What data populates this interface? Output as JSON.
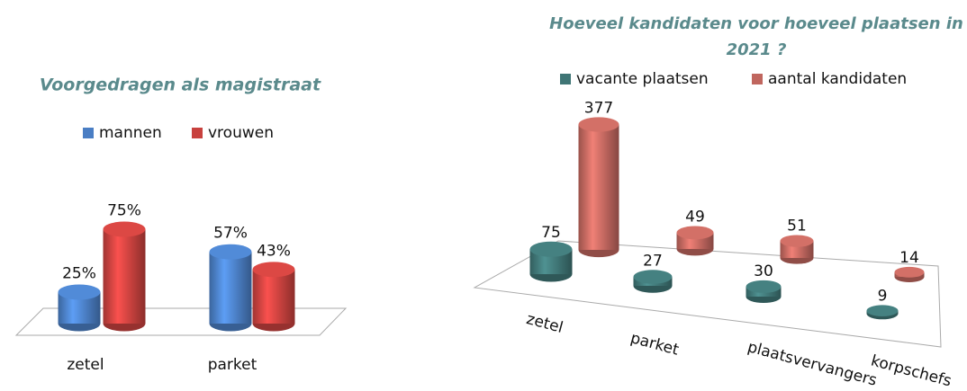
{
  "chart_data": [
    {
      "type": "bar3d",
      "title": "Voorgedragen als magistraat",
      "categories": [
        "zetel",
        "parket"
      ],
      "series": [
        {
          "name": "mannen",
          "color": "#4a7ec4",
          "values": [
            25,
            57
          ],
          "value_labels": [
            "25%",
            "57%"
          ]
        },
        {
          "name": "vrouwen",
          "color": "#c8413e",
          "values": [
            75,
            43
          ],
          "value_labels": [
            "75%",
            "43%"
          ]
        }
      ]
    },
    {
      "type": "bar3d-perspective",
      "title": "Hoeveel kandidaten voor hoeveel plaatsen in 2021 ?",
      "categories": [
        "zetel",
        "parket",
        "plaatsvervangers",
        "korpschefs"
      ],
      "series": [
        {
          "name": "vacante plaatsen",
          "color": "#3f7575",
          "values": [
            75,
            27,
            30,
            9
          ]
        },
        {
          "name": "aantal kandidaten",
          "color": "#c0665e",
          "values": [
            377,
            49,
            51,
            14
          ]
        }
      ]
    }
  ]
}
